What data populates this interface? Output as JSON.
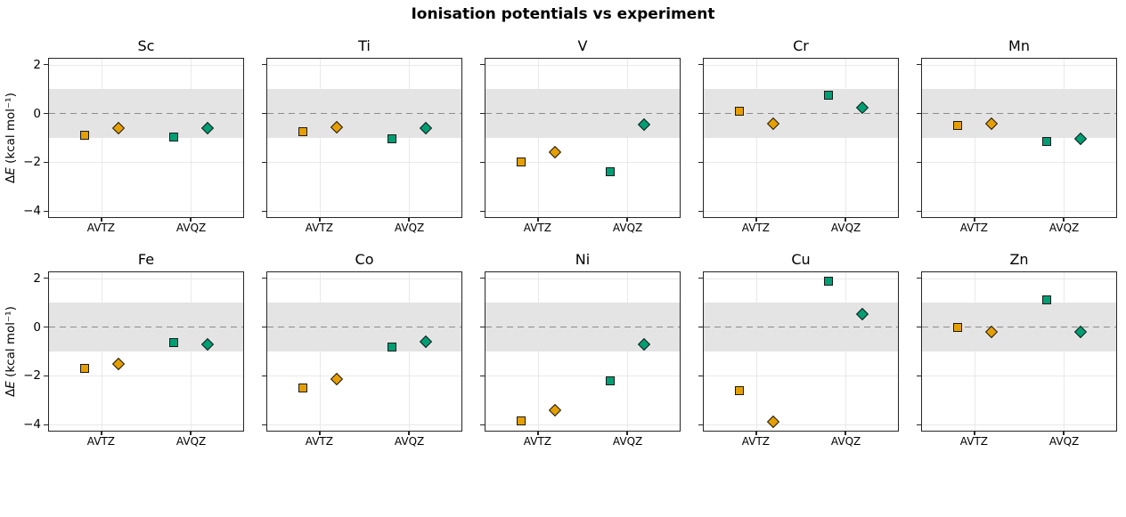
{
  "figure": {
    "title": "Ionisation potentials vs experiment",
    "ylabel_prefix": "Δ",
    "ylabel_var": "E",
    "ylabel_suffix": " (kcal mol⁻¹)"
  },
  "colors": {
    "avtz_marker": "#E69F00",
    "avqz_marker": "#009E73",
    "marker_edge": "#1a1a1a",
    "reference_band": "#e4e4e4",
    "zero_line": "#8c8c8c",
    "grid_line": "#e9e9e9",
    "axis": "#262626"
  },
  "chart_data": {
    "type": "scatter",
    "title": "Ionisation potentials vs experiment",
    "ylabel": "ΔE (kcal mol⁻¹)",
    "x_categories": [
      "AVTZ",
      "AVQZ"
    ],
    "yticks": [
      2,
      0,
      -2,
      -4
    ],
    "ylim": [
      -4.25,
      2.25
    ],
    "reference_band": [
      -1,
      1
    ],
    "zero_line_y": 0,
    "grid": true,
    "marker_shapes": [
      "square",
      "diamond"
    ],
    "color_by_basis": {
      "AVTZ": "#E69F00",
      "AVQZ": "#009E73"
    },
    "rows": [
      {
        "panels": [
          {
            "element": "Sc",
            "points": [
              {
                "basis": "AVTZ",
                "marker": "square",
                "value": -0.9
              },
              {
                "basis": "AVTZ",
                "marker": "diamond",
                "value": -0.6
              },
              {
                "basis": "AVQZ",
                "marker": "square",
                "value": -0.95
              },
              {
                "basis": "AVQZ",
                "marker": "diamond",
                "value": -0.6
              }
            ]
          },
          {
            "element": "Ti",
            "points": [
              {
                "basis": "AVTZ",
                "marker": "square",
                "value": -0.75
              },
              {
                "basis": "AVTZ",
                "marker": "diamond",
                "value": -0.55
              },
              {
                "basis": "AVQZ",
                "marker": "square",
                "value": -1.05
              },
              {
                "basis": "AVQZ",
                "marker": "diamond",
                "value": -0.6
              }
            ]
          },
          {
            "element": "V",
            "points": [
              {
                "basis": "AVTZ",
                "marker": "square",
                "value": -2.0
              },
              {
                "basis": "AVTZ",
                "marker": "diamond",
                "value": -1.6
              },
              {
                "basis": "AVQZ",
                "marker": "square",
                "value": -2.4
              },
              {
                "basis": "AVQZ",
                "marker": "diamond",
                "value": -0.45
              }
            ]
          },
          {
            "element": "Cr",
            "points": [
              {
                "basis": "AVTZ",
                "marker": "square",
                "value": 0.1
              },
              {
                "basis": "AVTZ",
                "marker": "diamond",
                "value": -0.4
              },
              {
                "basis": "AVQZ",
                "marker": "square",
                "value": 0.75
              },
              {
                "basis": "AVQZ",
                "marker": "diamond",
                "value": 0.25
              }
            ]
          },
          {
            "element": "Mn",
            "points": [
              {
                "basis": "AVTZ",
                "marker": "square",
                "value": -0.5
              },
              {
                "basis": "AVTZ",
                "marker": "diamond",
                "value": -0.4
              },
              {
                "basis": "AVQZ",
                "marker": "square",
                "value": -1.15
              },
              {
                "basis": "AVQZ",
                "marker": "diamond",
                "value": -1.05
              }
            ]
          }
        ]
      },
      {
        "panels": [
          {
            "element": "Fe",
            "points": [
              {
                "basis": "AVTZ",
                "marker": "square",
                "value": -1.7
              },
              {
                "basis": "AVTZ",
                "marker": "diamond",
                "value": -1.5
              },
              {
                "basis": "AVQZ",
                "marker": "square",
                "value": -0.65
              },
              {
                "basis": "AVQZ",
                "marker": "diamond",
                "value": -0.7
              }
            ]
          },
          {
            "element": "Co",
            "points": [
              {
                "basis": "AVTZ",
                "marker": "square",
                "value": -2.5
              },
              {
                "basis": "AVTZ",
                "marker": "diamond",
                "value": -2.15
              },
              {
                "basis": "AVQZ",
                "marker": "square",
                "value": -0.8
              },
              {
                "basis": "AVQZ",
                "marker": "diamond",
                "value": -0.6
              }
            ]
          },
          {
            "element": "Ni",
            "points": [
              {
                "basis": "AVTZ",
                "marker": "square",
                "value": -3.85
              },
              {
                "basis": "AVTZ",
                "marker": "diamond",
                "value": -3.4
              },
              {
                "basis": "AVQZ",
                "marker": "square",
                "value": -2.2
              },
              {
                "basis": "AVQZ",
                "marker": "diamond",
                "value": -0.7
              }
            ]
          },
          {
            "element": "Cu",
            "points": [
              {
                "basis": "AVTZ",
                "marker": "square",
                "value": -2.6
              },
              {
                "basis": "AVTZ",
                "marker": "diamond",
                "value": -3.9
              },
              {
                "basis": "AVQZ",
                "marker": "square",
                "value": 1.9
              },
              {
                "basis": "AVQZ",
                "marker": "diamond",
                "value": 0.55
              }
            ]
          },
          {
            "element": "Zn",
            "points": [
              {
                "basis": "AVTZ",
                "marker": "square",
                "value": 0.0
              },
              {
                "basis": "AVTZ",
                "marker": "diamond",
                "value": -0.2
              },
              {
                "basis": "AVQZ",
                "marker": "square",
                "value": 1.1
              },
              {
                "basis": "AVQZ",
                "marker": "diamond",
                "value": -0.2
              }
            ]
          }
        ]
      }
    ]
  }
}
